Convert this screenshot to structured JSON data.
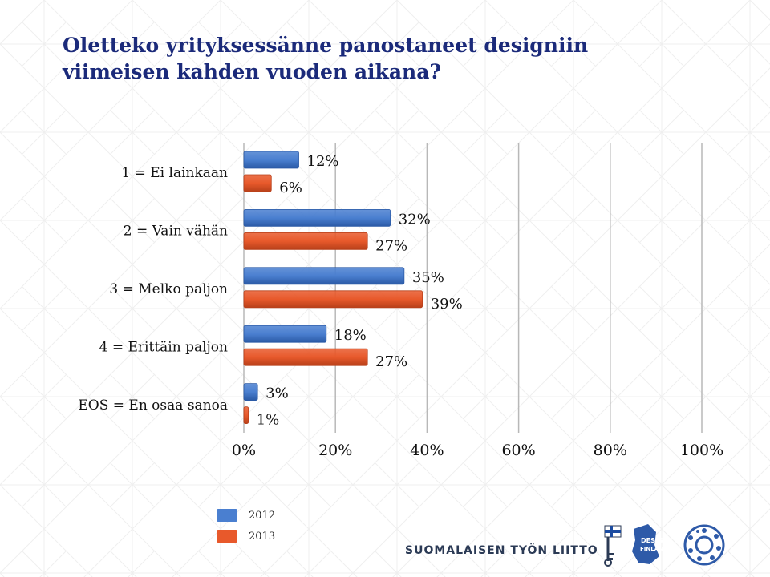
{
  "title": {
    "line1": "Oletteko yrityksessänne panostaneet designiin",
    "line2": "viimeisen kahden vuoden aikana?"
  },
  "colors": {
    "title": "#1b2a7a",
    "series_2012": "#4a7fd0",
    "series_2013": "#e8592b",
    "grid": "#b8b8b8"
  },
  "chart_data": {
    "type": "bar",
    "orientation": "horizontal",
    "categories": [
      "1 = Ei lainkaan",
      "2 = Vain vähän",
      "3 = Melko paljon",
      "4 = Erittäin paljon",
      "EOS = En osaa sanoa"
    ],
    "series": [
      {
        "name": "2012",
        "values": [
          12,
          32,
          35,
          18,
          3
        ],
        "labels": [
          "12%",
          "32%",
          "35%",
          "18%",
          "3%"
        ]
      },
      {
        "name": "2013",
        "values": [
          6,
          27,
          39,
          27,
          1
        ],
        "labels": [
          "6%",
          "27%",
          "39%",
          "27%",
          "1%"
        ]
      }
    ],
    "xlim": [
      0,
      100
    ],
    "xticks": [
      "0%",
      "20%",
      "40%",
      "60%",
      "80%",
      "100%"
    ],
    "grid": true,
    "legend_position": "bottom-left"
  },
  "legend": {
    "items": [
      {
        "label": "2012",
        "color": "#4a7fd0"
      },
      {
        "label": "2013",
        "color": "#e8592b"
      }
    ]
  },
  "footer": {
    "organization": "SUOMALAISEN TYÖN LIITTO",
    "logo_text": "DESIGN FINLAND",
    "icons": [
      "key-flag-icon",
      "design-finland-logo",
      "circular-emblem-icon"
    ]
  }
}
